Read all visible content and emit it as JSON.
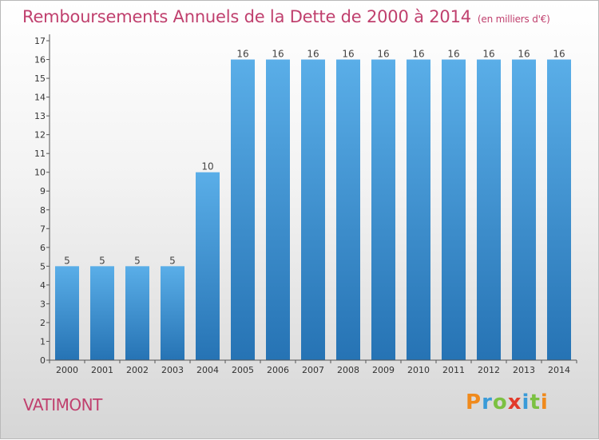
{
  "title": "Remboursements Annuels de la Dette de 2000 à 2014",
  "subtitle": "(en milliers d'€)",
  "commune": "VATIMONT",
  "brand": "Proxiti",
  "colors": {
    "title": "#c0406e",
    "bar_light": "#5aaee8",
    "bar_dark": "#2673b4",
    "brand_letters": [
      "#f08a1c",
      "#3a9bd8",
      "#7cc142",
      "#e23a2a",
      "#3a9bd8",
      "#7cc142",
      "#f08a1c"
    ]
  },
  "chart_data": {
    "type": "bar",
    "title": "Remboursements Annuels de la Dette de 2000 à 2014",
    "subtitle": "(en milliers d'€)",
    "categories": [
      "2000",
      "2001",
      "2002",
      "2003",
      "2004",
      "2005",
      "2006",
      "2007",
      "2008",
      "2009",
      "2010",
      "2011",
      "2012",
      "2013",
      "2014"
    ],
    "values": [
      5,
      5,
      5,
      5,
      10,
      16,
      16,
      16,
      16,
      16,
      16,
      16,
      16,
      16,
      16
    ],
    "data_labels": [
      "5",
      "5",
      "5",
      "5",
      "10",
      "16",
      "16",
      "16",
      "16",
      "16",
      "16",
      "16",
      "16",
      "16",
      "16"
    ],
    "yticks": [
      0,
      1,
      2,
      3,
      4,
      5,
      6,
      7,
      8,
      9,
      10,
      11,
      12,
      13,
      14,
      15,
      16,
      17
    ],
    "ylim": [
      0,
      17
    ],
    "grid": false,
    "legend": "none"
  }
}
